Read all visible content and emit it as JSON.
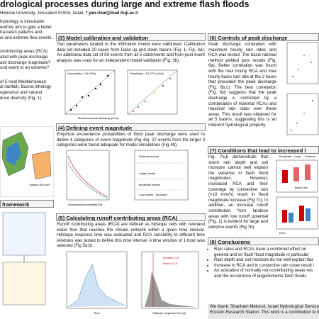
{
  "header": {
    "title": "drological processes during large and extreme flash floods",
    "affiliation": "Hebrew University, Jerusalem 91904, Israel,",
    "email": "* yair.rinat@mail.huji.ac.il"
  },
  "left": {
    "intro": [
      "hydrology is intra-basin",
      "erefore aim to gain a better",
      "tra-basin patterns and",
      "al and extreme flow events."
    ],
    "questions": [
      "contributing areas (RCA)",
      "ated with peak discharge",
      "ask discharge magnitude?",
      "ood event to an extreme?"
    ],
    "study": [
      "of 5 rural Mediterranean",
      "al rainfall). Basins lithology",
      "ogeneous and natural",
      "duce diversity (Fig. 1)."
    ],
    "map_label": "Barlam (20 km²)",
    "framework_title": "framework"
  },
  "s3": {
    "title": "(3) Model calibration and validation",
    "text": "Two parameters related to the infiltration model were calibrated. Calibration data set included 20 cases from Dalia up and down basins (Fig. 1, Fig. 3a). An additional data set of 59 events from all 5 catchments and from post-event analysis was used for an independent model validation (Fig. 3b).",
    "fig_a": "Uncertainty = 16 [m³/s]",
    "fig_b": "Sensitivity = 15-27% [m³/s]",
    "xlabel": "Measured peak discharge [m³/s]"
  },
  "s4": {
    "title": "(4) Defining event magnitude",
    "text": "Empirical exceedance probabilities of flood peak discharge were used to define 4 categories of event magnitude (Fig 4a). 27 events from the larger 3 categories were found adequate for model simulations (Fig 4b).",
    "labels": [
      "Extreme events",
      "Large events",
      "Moderate events",
      "Low events - excluded"
    ],
    "xlabel": "Exceedance probability [%]"
  },
  "s5": {
    "title": "(5) Calculating runoff contributing areas (RCA)",
    "text": "Runoff contributing areas (RCA) are defined as hillslope cells with overland water flow that reaches the stream network within a given time interval. Hillslope response time was evaluated and RCA sensitivity to different time windows was tested to define this time interval. A time window of 1 hour was selected (Fig 5a,b).",
    "median": "Median=1.01",
    "mean": "Mean=1.15",
    "xlabel_a": "Time",
    "xlabel_b": "Hillslope response time [h]"
  },
  "s6": {
    "title": "(6) Controls of peak discharge",
    "text": "Peak discharge correlation with maximum hourly rain rates and RCA was tested. The basic rational method yielded poor results (Fig. 6a). Better correlation was found with the max hourly RCA and max hourly basin rain rate at the 2 hours that preceded the peak discharge (Fig. 6b,c). The best correlation (Fig. 6d) suggests that the peak discharge is controlled by a combination of maximal RCAs and maximal rain rates over these areas. This result was obtained for all 5 basins, suggesting this is an inherent hydrological property."
  },
  "s7": {
    "title": "(7) Conditions that lead to increased l",
    "text": "Fig. 7a,b demonstrate that storm rain depth and soil moisture cannot well explain the variance in flash flood magnitudes. However, increased RCA and their coverage by convective rain (>10 mm/h) result in flood magnitude increase (Fig 7c). In addition, an increase runoff contribution from landuse areas with low runoff potential (Fig. 1) is evident for large and extreme events (Fig 7b).",
    "legend": [
      "Moderate",
      "Large",
      "Extreme"
    ],
    "legend2": [
      "Basin rain",
      "RCA"
    ]
  },
  "s8": {
    "title": "(8) Conclusions",
    "bullets": [
      "Rain rates and RCAs have a combined effect on general and on flash flood magnitude in particular",
      "Rain depth and soil moisture do not well explain flas",
      "Increase in RCA and in convective rain cover result i",
      "An activation of normally non-contributing areas res and the occurrence of large/extreme flash floods"
    ]
  },
  "thanks": [
    "We thank: Shacham Mekorot, Israel Hydrological Service, Is",
    "Erosion Research Station. This work is a contribution to the I"
  ]
}
